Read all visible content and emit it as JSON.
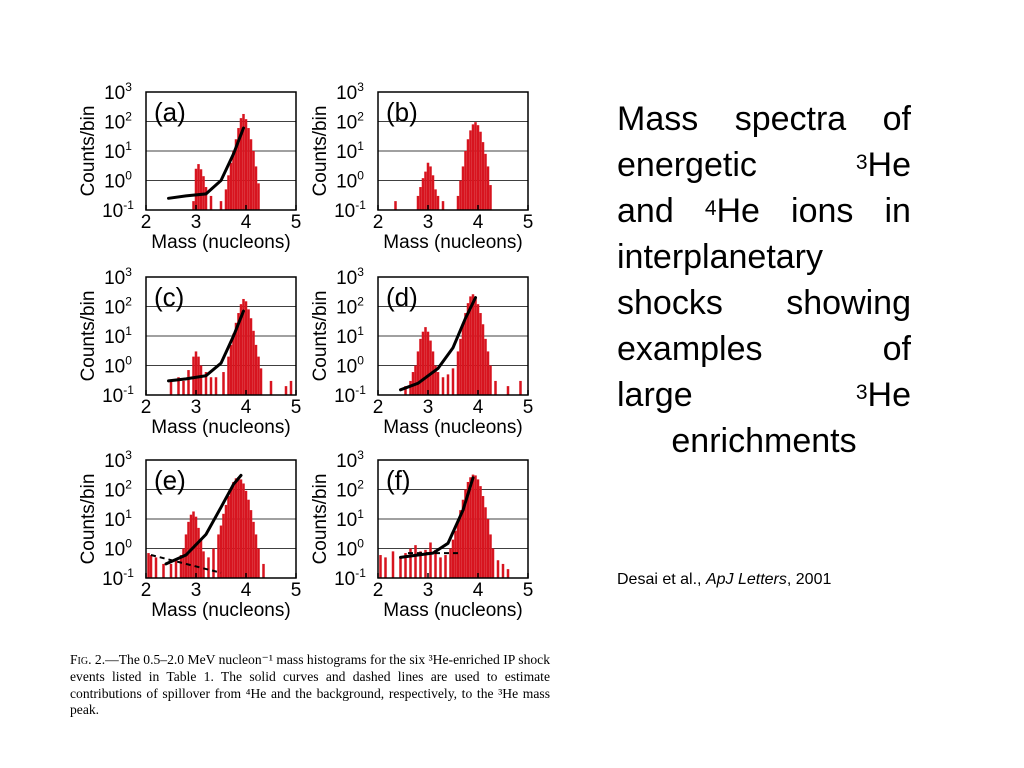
{
  "title": {
    "lines": [
      {
        "words": [
          "Mass",
          "spectra",
          "of"
        ]
      },
      {
        "words": [
          "energetic",
          ""
        ],
        "sup": "3",
        "tail": "He"
      },
      {
        "words": [
          "and"
        ],
        "sup": "4",
        "tail": "He",
        "rest": [
          "ions",
          "in"
        ]
      },
      {
        "words": [
          "interplanetary"
        ]
      },
      {
        "words": [
          "shocks",
          "showing"
        ]
      },
      {
        "words": [
          "examples",
          "of"
        ]
      },
      {
        "words": [
          "large",
          ""
        ],
        "sup": "3",
        "tail": "He"
      },
      {
        "words": [
          "enrichments"
        ],
        "center": true
      }
    ]
  },
  "citation": {
    "authors": "Desai et al., ",
    "journal": "ApJ Letters",
    "year": ", 2001"
  },
  "caption": {
    "fig_label": "Fig. 2.",
    "text": "—The 0.5–2.0 MeV nucleon⁻¹ mass histograms for the six ³He-enriched IP shock events listed in Table 1. The solid curves and dashed lines are used to estimate contributions of spillover from ⁴He and the background, respectively, to the ³He mass peak."
  },
  "chart_data": [
    {
      "type": "bar",
      "panel": "(a)",
      "xlabel": "Mass (nucleons)",
      "ylabel": "Counts/bin",
      "xlim": [
        2,
        5
      ],
      "ylim": [
        0.1,
        1000
      ],
      "log_y": true,
      "x_ticks": [
        2,
        3,
        4,
        5
      ],
      "y_ticks": [
        "10-1",
        "100",
        "101",
        "102",
        "103"
      ],
      "bins": [
        [
          2.95,
          0.2
        ],
        [
          3.0,
          2.5
        ],
        [
          3.05,
          3.6
        ],
        [
          3.1,
          2.4
        ],
        [
          3.15,
          1.4
        ],
        [
          3.2,
          0.6
        ],
        [
          3.3,
          0.3
        ],
        [
          3.5,
          0.2
        ],
        [
          3.6,
          0.5
        ],
        [
          3.65,
          1.5
        ],
        [
          3.7,
          4
        ],
        [
          3.75,
          10
        ],
        [
          3.8,
          25
        ],
        [
          3.85,
          60
        ],
        [
          3.9,
          130
        ],
        [
          3.95,
          180
        ],
        [
          4.0,
          120
        ],
        [
          4.05,
          60
        ],
        [
          4.1,
          25
        ],
        [
          4.15,
          10
        ],
        [
          4.2,
          3
        ],
        [
          4.25,
          0.8
        ]
      ],
      "fit_curve": [
        [
          2.45,
          0.25
        ],
        [
          2.8,
          0.3
        ],
        [
          3.2,
          0.35
        ],
        [
          3.5,
          1.0
        ],
        [
          3.75,
          8
        ],
        [
          3.95,
          60
        ]
      ]
    },
    {
      "type": "bar",
      "panel": "(b)",
      "xlabel": "Mass (nucleons)",
      "ylabel": "Counts/bin",
      "xlim": [
        2,
        5
      ],
      "ylim": [
        0.1,
        1000
      ],
      "log_y": true,
      "x_ticks": [
        2,
        3,
        4,
        5
      ],
      "y_ticks": [
        "10-1",
        "100",
        "101",
        "102",
        "103"
      ],
      "bins": [
        [
          2.35,
          0.2
        ],
        [
          2.8,
          0.3
        ],
        [
          2.85,
          0.6
        ],
        [
          2.9,
          1.2
        ],
        [
          2.95,
          2
        ],
        [
          3.0,
          4
        ],
        [
          3.05,
          3
        ],
        [
          3.1,
          1.5
        ],
        [
          3.15,
          0.5
        ],
        [
          3.2,
          0.3
        ],
        [
          3.3,
          0.2
        ],
        [
          3.6,
          0.3
        ],
        [
          3.65,
          1
        ],
        [
          3.7,
          3
        ],
        [
          3.75,
          10
        ],
        [
          3.8,
          25
        ],
        [
          3.85,
          50
        ],
        [
          3.9,
          80
        ],
        [
          3.95,
          95
        ],
        [
          4.0,
          75
        ],
        [
          4.05,
          45
        ],
        [
          4.1,
          20
        ],
        [
          4.15,
          8
        ],
        [
          4.2,
          3
        ],
        [
          4.25,
          0.7
        ]
      ],
      "fit_curve": []
    },
    {
      "type": "bar",
      "panel": "(c)",
      "xlabel": "Mass (nucleons)",
      "ylabel": "Counts/bin",
      "xlim": [
        2,
        5
      ],
      "ylim": [
        0.1,
        1000
      ],
      "log_y": true,
      "x_ticks": [
        2,
        3,
        4,
        5
      ],
      "y_ticks": [
        "10-1",
        "100",
        "101",
        "102",
        "103"
      ],
      "bins": [
        [
          2.5,
          0.3
        ],
        [
          2.65,
          0.4
        ],
        [
          2.75,
          0.3
        ],
        [
          2.85,
          0.7
        ],
        [
          2.95,
          2
        ],
        [
          3.0,
          3
        ],
        [
          3.05,
          2
        ],
        [
          3.1,
          1
        ],
        [
          3.2,
          0.6
        ],
        [
          3.3,
          0.4
        ],
        [
          3.4,
          0.4
        ],
        [
          3.55,
          0.6
        ],
        [
          3.65,
          2
        ],
        [
          3.7,
          5
        ],
        [
          3.75,
          12
        ],
        [
          3.8,
          28
        ],
        [
          3.85,
          60
        ],
        [
          3.9,
          120
        ],
        [
          3.95,
          180
        ],
        [
          4.0,
          150
        ],
        [
          4.05,
          80
        ],
        [
          4.1,
          40
        ],
        [
          4.15,
          15
        ],
        [
          4.2,
          5
        ],
        [
          4.25,
          2
        ],
        [
          4.3,
          0.8
        ],
        [
          4.5,
          0.3
        ],
        [
          4.8,
          0.2
        ],
        [
          4.9,
          0.3
        ]
      ],
      "fit_curve": [
        [
          2.45,
          0.3
        ],
        [
          2.8,
          0.35
        ],
        [
          3.2,
          0.45
        ],
        [
          3.5,
          1.2
        ],
        [
          3.75,
          10
        ],
        [
          3.95,
          70
        ]
      ]
    },
    {
      "type": "bar",
      "panel": "(d)",
      "xlabel": "Mass (nucleons)",
      "ylabel": "Counts/bin",
      "xlim": [
        2,
        5
      ],
      "ylim": [
        0.1,
        1000
      ],
      "log_y": true,
      "x_ticks": [
        2,
        3,
        4,
        5
      ],
      "y_ticks": [
        "10-1",
        "100",
        "101",
        "102",
        "103"
      ],
      "bins": [
        [
          2.55,
          0.2
        ],
        [
          2.65,
          0.3
        ],
        [
          2.7,
          0.6
        ],
        [
          2.75,
          1
        ],
        [
          2.8,
          3
        ],
        [
          2.85,
          8
        ],
        [
          2.9,
          14
        ],
        [
          2.95,
          20
        ],
        [
          3.0,
          14
        ],
        [
          3.05,
          7
        ],
        [
          3.1,
          3
        ],
        [
          3.15,
          1
        ],
        [
          3.2,
          0.6
        ],
        [
          3.3,
          0.4
        ],
        [
          3.4,
          0.5
        ],
        [
          3.5,
          0.8
        ],
        [
          3.6,
          3
        ],
        [
          3.65,
          8
        ],
        [
          3.7,
          25
        ],
        [
          3.75,
          60
        ],
        [
          3.8,
          130
        ],
        [
          3.85,
          220
        ],
        [
          3.9,
          260
        ],
        [
          3.95,
          200
        ],
        [
          4.0,
          120
        ],
        [
          4.05,
          60
        ],
        [
          4.1,
          25
        ],
        [
          4.15,
          8
        ],
        [
          4.2,
          3
        ],
        [
          4.25,
          1
        ],
        [
          4.35,
          0.3
        ],
        [
          4.6,
          0.2
        ],
        [
          4.85,
          0.3
        ]
      ],
      "fit_curve": [
        [
          2.45,
          0.15
        ],
        [
          2.8,
          0.25
        ],
        [
          3.2,
          0.8
        ],
        [
          3.5,
          4
        ],
        [
          3.75,
          40
        ],
        [
          3.95,
          200
        ]
      ]
    },
    {
      "type": "bar",
      "panel": "(e)",
      "xlabel": "Mass (nucleons)",
      "ylabel": "Counts/bin",
      "xlim": [
        2,
        5
      ],
      "ylim": [
        0.1,
        1000
      ],
      "log_y": true,
      "x_ticks": [
        2,
        3,
        4,
        5
      ],
      "y_ticks": [
        "10-1",
        "100",
        "101",
        "102",
        "103"
      ],
      "bins": [
        [
          2.05,
          0.7
        ],
        [
          2.1,
          0.6
        ],
        [
          2.2,
          0.5
        ],
        [
          2.35,
          0.3
        ],
        [
          2.5,
          0.3
        ],
        [
          2.6,
          0.4
        ],
        [
          2.7,
          0.6
        ],
        [
          2.75,
          1
        ],
        [
          2.8,
          3
        ],
        [
          2.85,
          8
        ],
        [
          2.9,
          14
        ],
        [
          2.95,
          18
        ],
        [
          3.0,
          12
        ],
        [
          3.05,
          5
        ],
        [
          3.1,
          2
        ],
        [
          3.15,
          0.8
        ],
        [
          3.25,
          0.5
        ],
        [
          3.35,
          1
        ],
        [
          3.45,
          3
        ],
        [
          3.5,
          6
        ],
        [
          3.55,
          15
        ],
        [
          3.6,
          30
        ],
        [
          3.65,
          60
        ],
        [
          3.7,
          110
        ],
        [
          3.75,
          180
        ],
        [
          3.8,
          240
        ],
        [
          3.85,
          260
        ],
        [
          3.9,
          220
        ],
        [
          3.95,
          160
        ],
        [
          4.0,
          90
        ],
        [
          4.05,
          45
        ],
        [
          4.1,
          20
        ],
        [
          4.15,
          8
        ],
        [
          4.2,
          3
        ],
        [
          4.25,
          1
        ],
        [
          4.35,
          0.3
        ]
      ],
      "fit_curve": [
        [
          2.4,
          0.3
        ],
        [
          2.8,
          0.6
        ],
        [
          3.2,
          3
        ],
        [
          3.5,
          25
        ],
        [
          3.75,
          150
        ],
        [
          3.9,
          300
        ]
      ],
      "dashed_line": [
        [
          2.1,
          0.6
        ],
        [
          3.5,
          0.15
        ]
      ]
    },
    {
      "type": "bar",
      "panel": "(f)",
      "xlabel": "Mass (nucleons)",
      "ylabel": "Counts/bin",
      "xlim": [
        2,
        5
      ],
      "ylim": [
        0.1,
        1000
      ],
      "log_y": true,
      "x_ticks": [
        2,
        3,
        4,
        5
      ],
      "y_ticks": [
        "10-1",
        "100",
        "101",
        "102",
        "103"
      ],
      "bins": [
        [
          2.05,
          0.6
        ],
        [
          2.15,
          0.5
        ],
        [
          2.3,
          0.8
        ],
        [
          2.45,
          0.5
        ],
        [
          2.55,
          0.7
        ],
        [
          2.65,
          1
        ],
        [
          2.75,
          1.3
        ],
        [
          2.85,
          0.8
        ],
        [
          2.95,
          0.9
        ],
        [
          3.05,
          1.6
        ],
        [
          3.15,
          0.9
        ],
        [
          3.25,
          0.5
        ],
        [
          3.35,
          0.6
        ],
        [
          3.45,
          1
        ],
        [
          3.5,
          2
        ],
        [
          3.55,
          4
        ],
        [
          3.6,
          8
        ],
        [
          3.65,
          20
        ],
        [
          3.7,
          45
        ],
        [
          3.75,
          100
        ],
        [
          3.8,
          180
        ],
        [
          3.85,
          260
        ],
        [
          3.9,
          320
        ],
        [
          3.95,
          300
        ],
        [
          4.0,
          220
        ],
        [
          4.05,
          130
        ],
        [
          4.1,
          60
        ],
        [
          4.15,
          25
        ],
        [
          4.2,
          10
        ],
        [
          4.25,
          3
        ],
        [
          4.3,
          1
        ],
        [
          4.4,
          0.4
        ],
        [
          4.5,
          0.3
        ],
        [
          4.6,
          0.2
        ]
      ],
      "fit_curve": [
        [
          2.45,
          0.5
        ],
        [
          2.8,
          0.6
        ],
        [
          3.1,
          0.7
        ],
        [
          3.4,
          1.5
        ],
        [
          3.7,
          20
        ],
        [
          3.9,
          250
        ]
      ],
      "dashed_line": [
        [
          2.6,
          0.7
        ],
        [
          3.6,
          0.7
        ]
      ]
    }
  ]
}
